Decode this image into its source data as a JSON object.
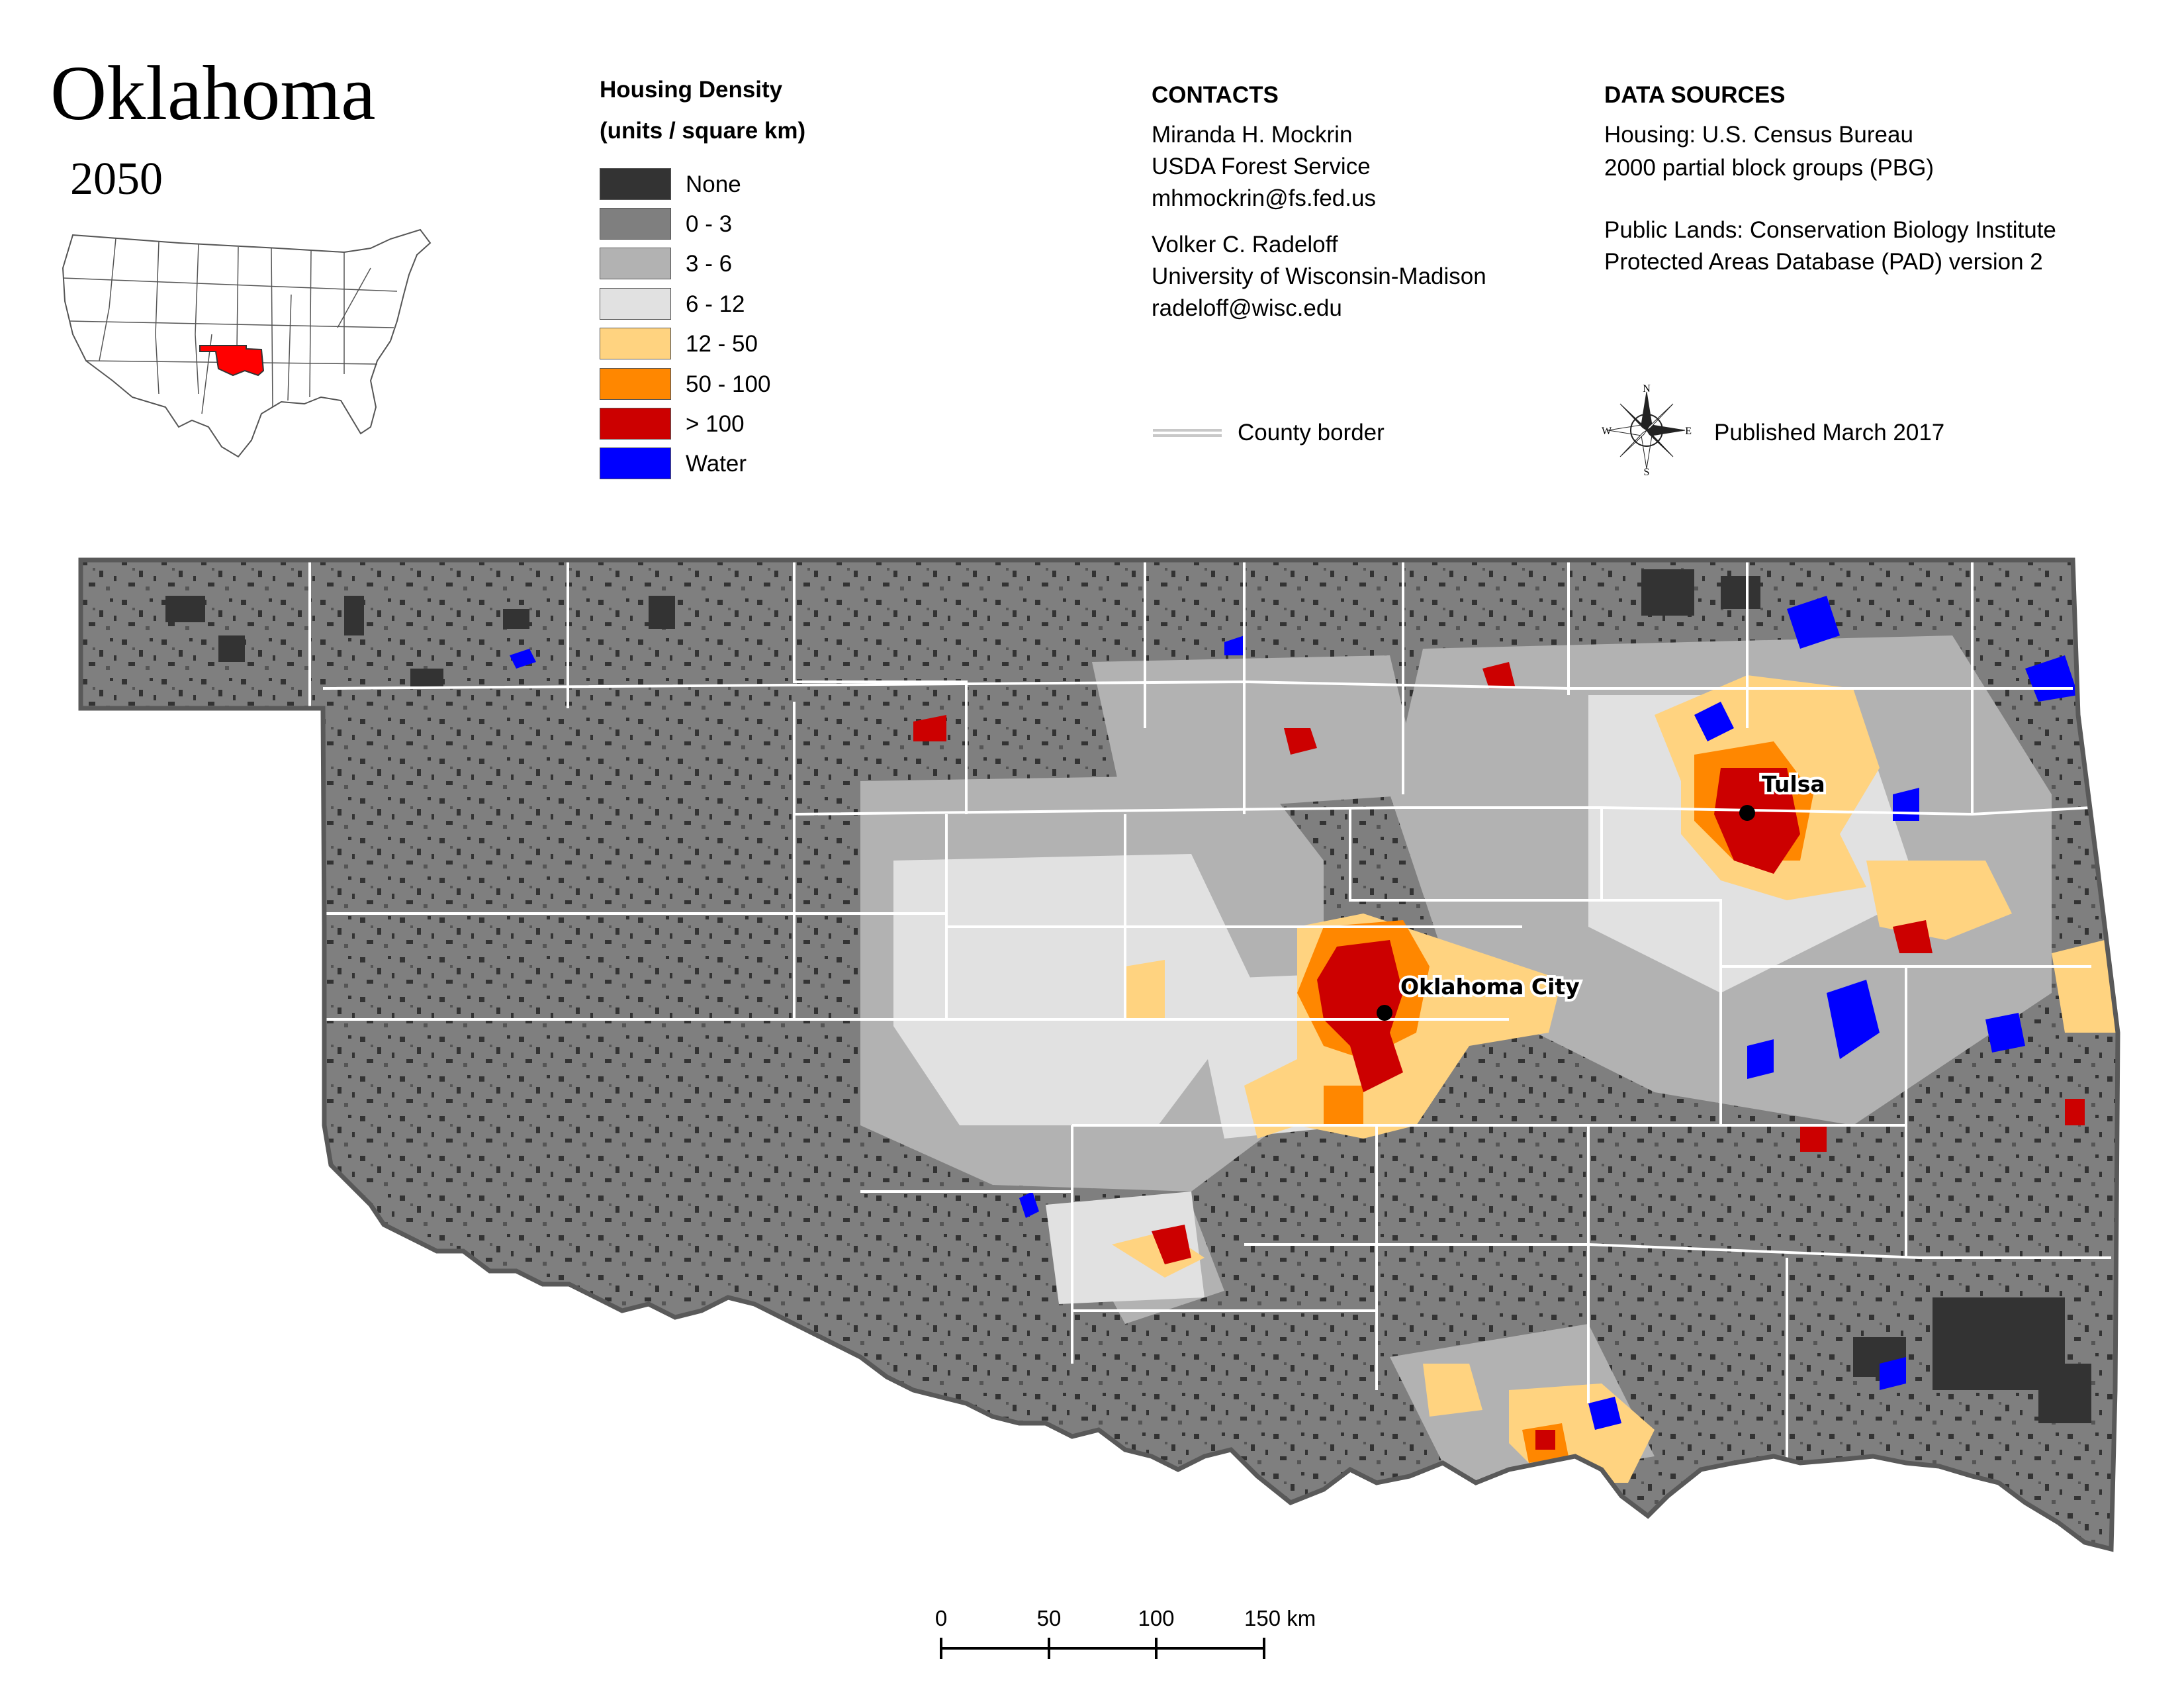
{
  "title": "Oklahoma",
  "year": "2050",
  "legend": {
    "title_line1": "Housing Density",
    "title_line2": "(units / square km)",
    "items": [
      {
        "label": "None",
        "color": "#333333"
      },
      {
        "label": "0 - 3",
        "color": "#7f7f7f"
      },
      {
        "label": "3 - 6",
        "color": "#b2b2b2"
      },
      {
        "label": "6 - 12",
        "color": "#e1e1e1"
      },
      {
        "label": "12 - 50",
        "color": "#ffd380"
      },
      {
        "label": "50 - 100",
        "color": "#ff8700"
      },
      {
        "label": "> 100",
        "color": "#cc0000"
      },
      {
        "label": "Water",
        "color": "#0000ff"
      }
    ]
  },
  "contacts": {
    "heading": "CONTACTS",
    "person1": [
      "Miranda H. Mockrin",
      "USDA Forest Service",
      "mhmockrin@fs.fed.us"
    ],
    "person2": [
      "Volker C. Radeloff",
      "University of Wisconsin-Madison",
      "radeloff@wisc.edu"
    ],
    "county_border_label": "County border"
  },
  "data_sources": {
    "heading": "DATA SOURCES",
    "housing": [
      "Housing: U.S. Census Bureau",
      "2000 partial block groups (PBG)"
    ],
    "public_lands": [
      "Public Lands: Conservation Biology Institute",
      "Protected Areas Database (PAD) version 2"
    ]
  },
  "compass": {
    "n": "N",
    "s": "S",
    "e": "E",
    "w": "W"
  },
  "published": "Published March 2017",
  "cities": {
    "tulsa": "Tulsa",
    "okc": "Oklahoma City"
  },
  "scale_bar": {
    "labels": [
      "0",
      "50",
      "100",
      "150 km"
    ]
  },
  "colors": {
    "background_land": "#7f7f7f",
    "state_outline": "#595959",
    "county_line": "#ffffff",
    "accent_state": "#ff0000"
  }
}
